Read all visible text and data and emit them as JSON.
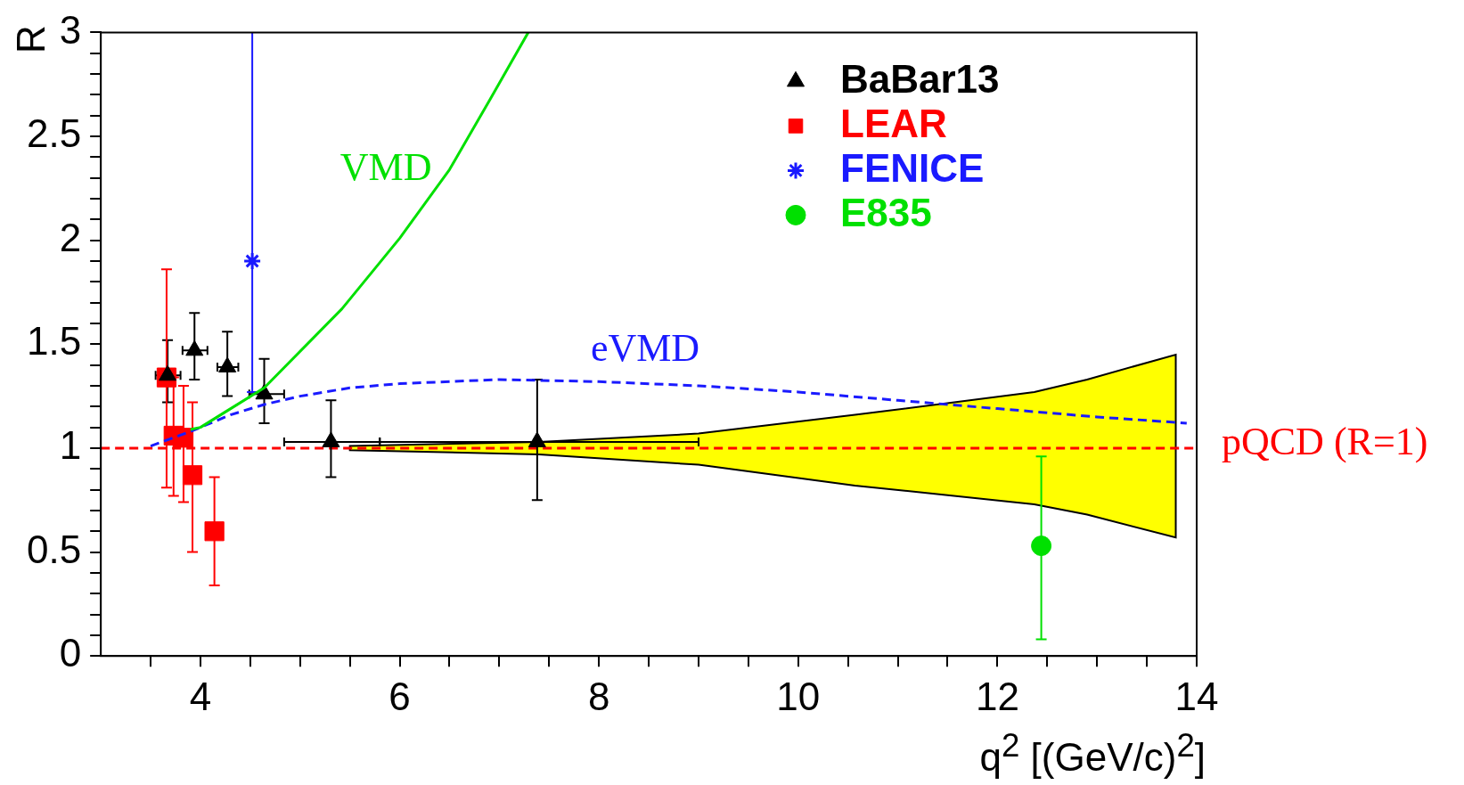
{
  "chart_data": {
    "type": "scatter",
    "xlabel": "q$^{2}$ [(GeV/c)$^{2}$]",
    "ylabel": "R",
    "xlim": [
      3,
      14
    ],
    "xticks": [
      {
        "value": 3.5,
        "label": null
      },
      4,
      {
        "value": 4.5,
        "label": null
      },
      {
        "value": 5,
        "label": null
      },
      {
        "value": 5.5,
        "label": null
      },
      6,
      {
        "value": 6.5,
        "label": null
      },
      {
        "value": 7,
        "label": null
      },
      {
        "value": 7.5,
        "label": null
      },
      8,
      {
        "value": 8.5,
        "label": null
      },
      {
        "value": 9,
        "label": null
      },
      {
        "value": 9.5,
        "label": null
      },
      10,
      {
        "value": 10.5,
        "label": null
      },
      {
        "value": 11,
        "label": null
      },
      {
        "value": 11.5,
        "label": null
      },
      12,
      {
        "value": 12.5,
        "label": null
      },
      {
        "value": 13,
        "label": null
      },
      {
        "value": 13.5,
        "label": null
      },
      14
    ],
    "ylim": [
      0,
      3
    ],
    "yticks": [
      0,
      {
        "value": 0.1,
        "label": null
      },
      {
        "value": 0.2,
        "label": null
      },
      {
        "value": 0.3,
        "label": null
      },
      {
        "value": 0.4,
        "label": null
      },
      0.5,
      {
        "value": 0.6,
        "label": null
      },
      {
        "value": 0.7,
        "label": null
      },
      {
        "value": 0.8,
        "label": null
      },
      {
        "value": 0.9,
        "label": null
      },
      1,
      {
        "value": 1.1,
        "label": null
      },
      {
        "value": 1.2,
        "label": null
      },
      {
        "value": 1.3,
        "label": null
      },
      {
        "value": 1.4,
        "label": null
      },
      1.5,
      {
        "value": 1.6,
        "label": null
      },
      {
        "value": 1.7,
        "label": null
      },
      {
        "value": 1.8,
        "label": null
      },
      {
        "value": 1.9,
        "label": null
      },
      2,
      {
        "value": 2.1,
        "label": null
      },
      {
        "value": 2.2,
        "label": null
      },
      {
        "value": 2.3,
        "label": null
      },
      {
        "value": 2.4,
        "label": null
      },
      2.5,
      {
        "value": 2.6,
        "label": null
      },
      {
        "value": 2.7,
        "label": null
      },
      {
        "value": 2.8,
        "label": null
      },
      {
        "value": 2.9,
        "label": null
      },
      3
    ],
    "grid": false,
    "legend": "top right",
    "series": [
      {
        "type": "area",
        "color": "#ffff00",
        "x": [
          5.5,
          7.4,
          9.0,
          10.57,
          12.37,
          12.9,
          13.79
        ],
        "values": [
          null,
          null,
          null,
          null,
          null,
          null,
          null
        ],
        "lower": [
          0.99,
          0.97,
          0.92,
          0.82,
          0.73,
          0.68,
          0.57
        ],
        "upper": [
          1.01,
          1.03,
          1.07,
          1.16,
          1.27,
          1.33,
          1.45
        ]
      },
      {
        "type": "line",
        "color": "#00e000",
        "x": [
          3.9,
          4.0,
          4.64,
          5.42,
          6.0,
          6.5,
          6.91,
          7.29
        ],
        "values": [
          1.09,
          1.1,
          1.29,
          1.67,
          2.01,
          2.34,
          2.68,
          3.0
        ]
      },
      {
        "type": "line",
        "color": "#1a1aff",
        "line_style": "dashed",
        "x": [
          3.5,
          3.9,
          4.3,
          4.64,
          5.0,
          5.5,
          6.0,
          7.0,
          8.0,
          9.0,
          10.0,
          11.0,
          12.0,
          13.0,
          13.9
        ],
        "values": [
          1.01,
          1.08,
          1.16,
          1.21,
          1.25,
          1.29,
          1.31,
          1.33,
          1.32,
          1.3,
          1.27,
          1.23,
          1.19,
          1.15,
          1.12
        ]
      },
      {
        "type": "scatter",
        "name": "BaBar13",
        "color": "#000000",
        "marker": "triangle",
        "x": [
          3.67,
          3.94,
          4.27,
          4.64,
          5.31,
          7.38
        ],
        "values": [
          1.35,
          1.47,
          1.39,
          1.26,
          1.03,
          1.03
        ],
        "errors": [
          [
            1.22,
            1.52
          ],
          [
            1.33,
            1.65
          ],
          [
            1.25,
            1.56
          ],
          [
            1.12,
            1.43
          ],
          [
            0.86,
            1.23
          ],
          [
            0.75,
            1.33
          ]
        ],
        "xerrors": [
          [
            3.55,
            3.8
          ],
          [
            3.82,
            4.07
          ],
          [
            4.17,
            4.38
          ],
          [
            4.49,
            4.84
          ],
          [
            4.84,
            5.8
          ],
          [
            5.8,
            9.0
          ]
        ]
      },
      {
        "type": "scatter",
        "name": "LEAR",
        "color": "#ff0000",
        "marker": "square",
        "x": [
          3.66,
          3.73,
          3.83,
          3.92,
          4.14
        ],
        "values": [
          1.34,
          1.06,
          1.05,
          0.87,
          0.6
        ],
        "errors": [
          [
            0.81,
            1.86
          ],
          [
            0.77,
            1.34
          ],
          [
            0.74,
            1.3
          ],
          [
            0.5,
            1.22
          ],
          [
            0.34,
            0.86
          ]
        ]
      },
      {
        "type": "scatter",
        "name": "FENICE",
        "color": "#1a1aff",
        "marker": "cross",
        "x": [
          4.52
        ],
        "values": [
          1.9
        ],
        "errors": [
          [
            1.27,
            3.0
          ]
        ]
      },
      {
        "type": "scatter",
        "name": "E835",
        "color": "#00e000",
        "marker": "circle",
        "x": [
          12.44
        ],
        "values": [
          0.53
        ],
        "errors": [
          [
            0.08,
            0.96
          ]
        ]
      }
    ],
    "ref_lines": [
      {
        "axis": "y",
        "value": 1,
        "label": "pQCD (R=1)",
        "color": "#ff0000",
        "line_style": "dashed"
      }
    ],
    "annotations": [
      "VMD",
      "eVMD"
    ]
  }
}
